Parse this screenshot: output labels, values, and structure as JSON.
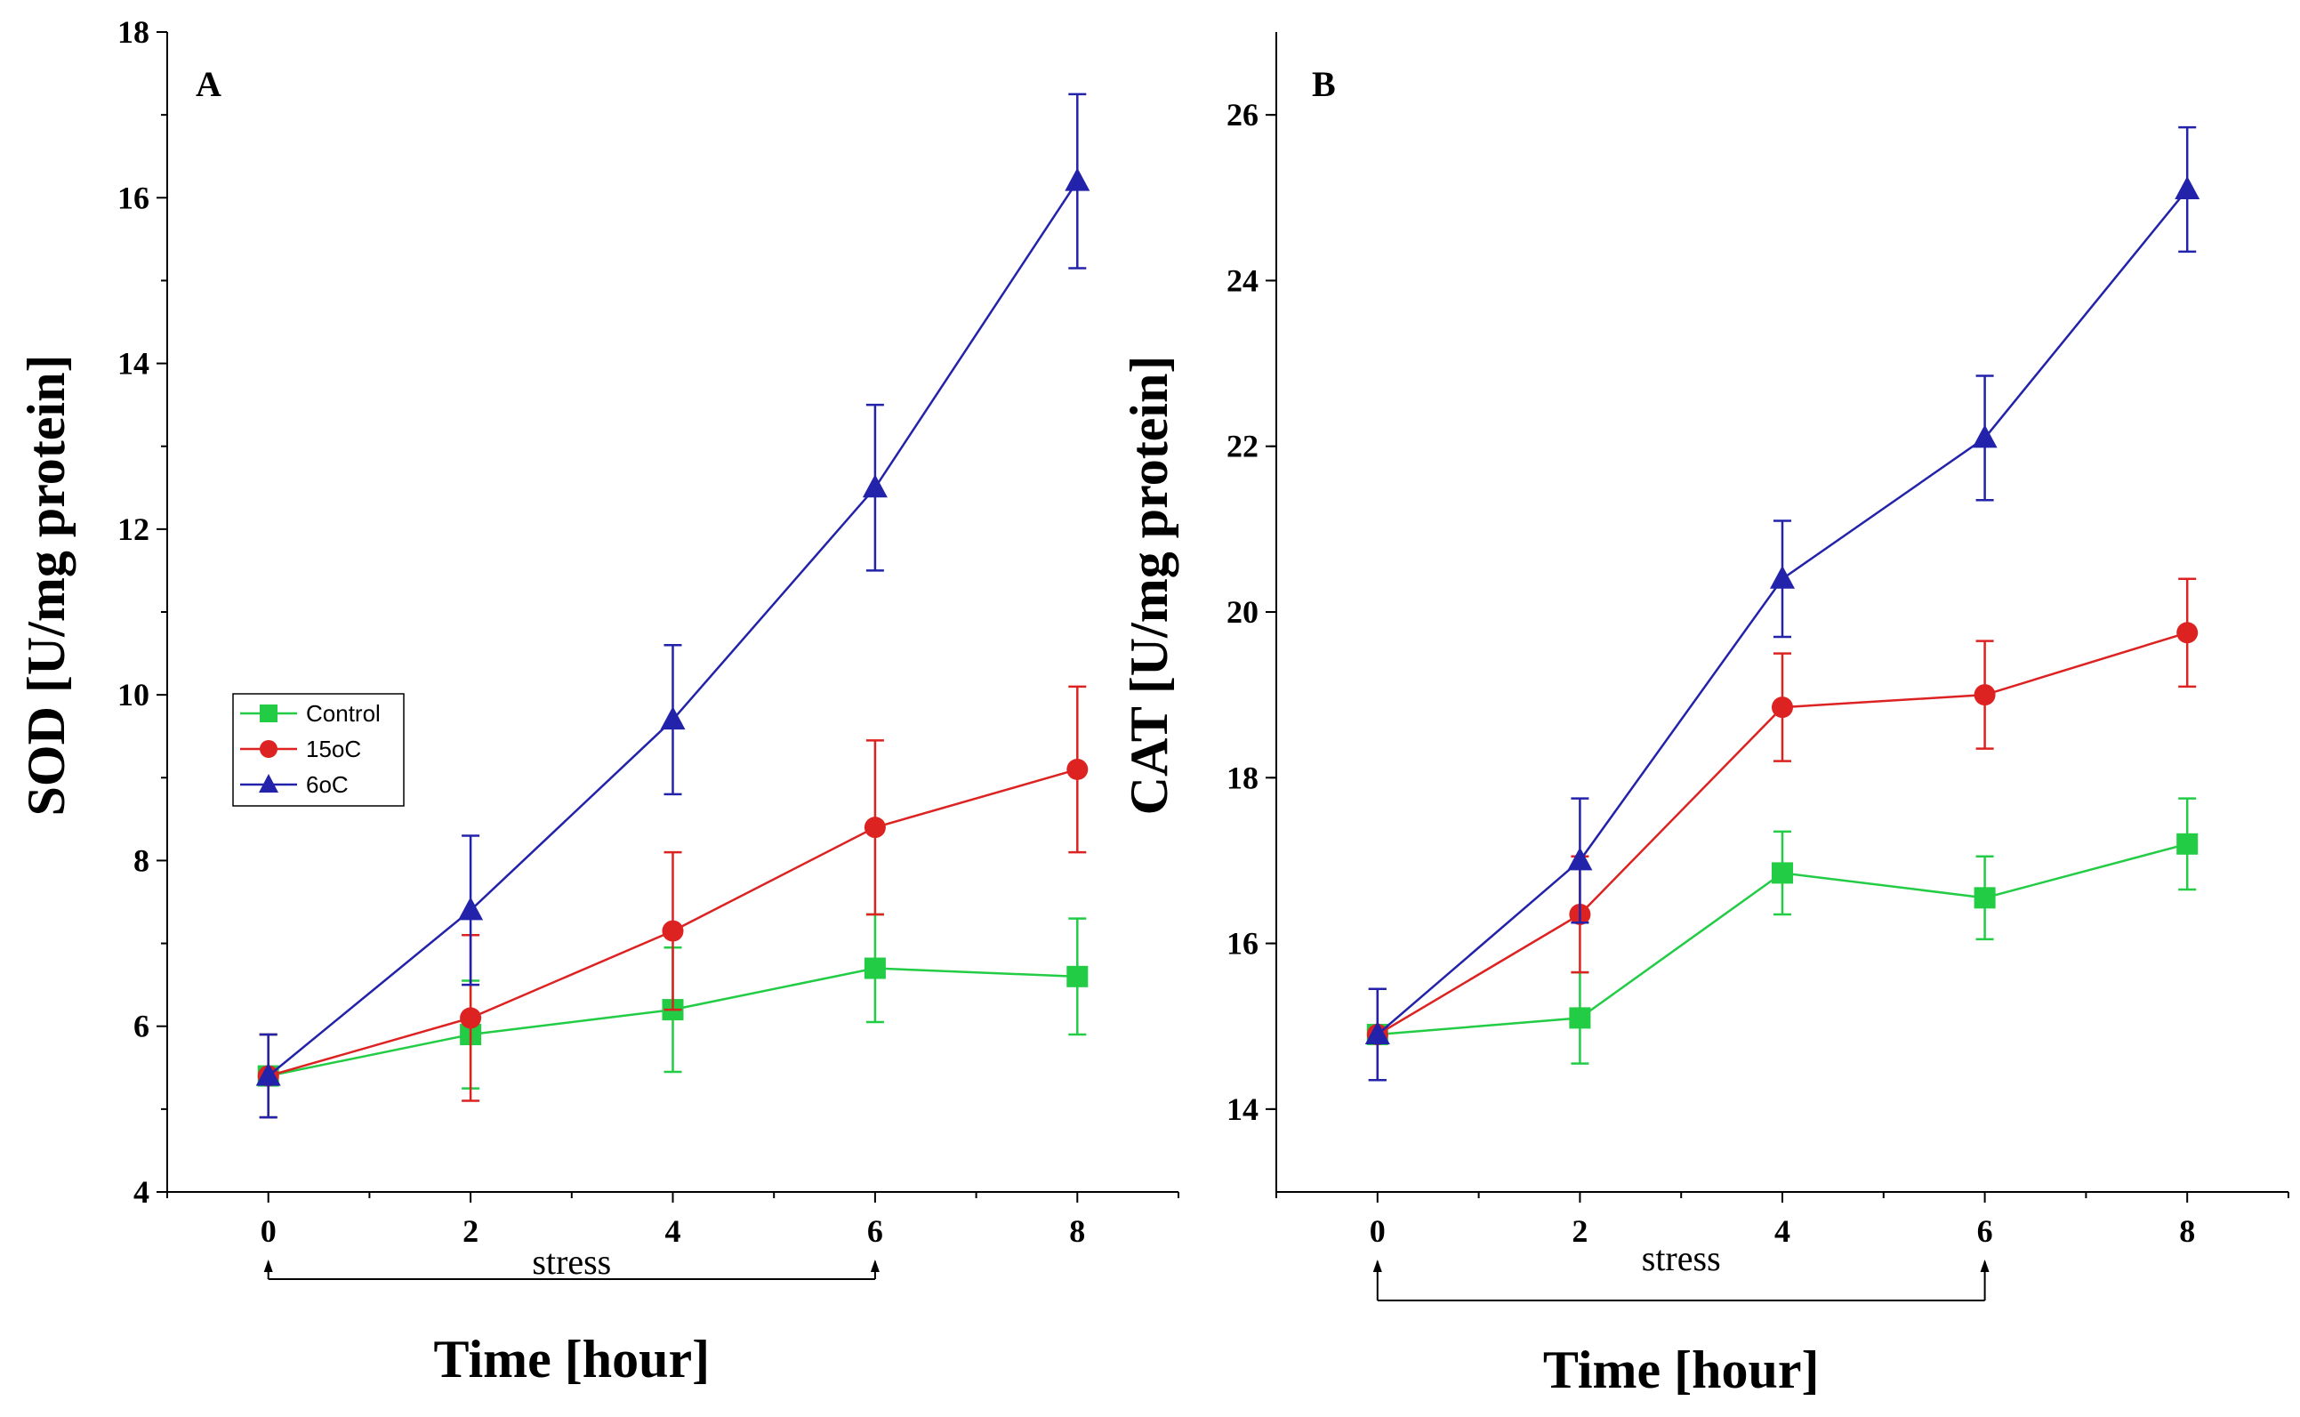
{
  "chart_data": [
    {
      "type": "line",
      "panel_label": "A",
      "xlabel": "Time [hour]",
      "ylabel": "SOD [U/mg protein]",
      "x": [
        0,
        2,
        4,
        6,
        8
      ],
      "xlim": [
        -1,
        9
      ],
      "ylim": [
        4,
        18
      ],
      "xticks": [
        0,
        2,
        4,
        6,
        8
      ],
      "yticks": [
        4,
        6,
        8,
        10,
        12,
        14,
        16,
        18
      ],
      "legend_position": "middle-left",
      "annotation": {
        "text": "stress",
        "from": 0,
        "to": 6
      },
      "series": [
        {
          "name": "Control",
          "color": "#22cc44",
          "marker": "square",
          "values": [
            5.4,
            5.9,
            6.2,
            6.7,
            6.6
          ],
          "errors": [
            0.5,
            0.65,
            0.75,
            0.65,
            0.7
          ]
        },
        {
          "name": "15oC",
          "color": "#dd2222",
          "marker": "circle",
          "values": [
            5.4,
            6.1,
            7.15,
            8.4,
            9.1
          ],
          "errors": [
            0.5,
            1.0,
            0.95,
            1.05,
            1.0
          ]
        },
        {
          "name": "6oC",
          "color": "#2222aa",
          "marker": "triangle",
          "values": [
            5.4,
            7.4,
            9.7,
            12.5,
            16.2
          ],
          "errors": [
            0.5,
            0.9,
            0.9,
            1.0,
            1.05
          ]
        }
      ]
    },
    {
      "type": "line",
      "panel_label": "B",
      "xlabel": "Time [hour]",
      "ylabel": "CAT [U/mg protein]",
      "x": [
        0,
        2,
        4,
        6,
        8
      ],
      "xlim": [
        -1,
        9
      ],
      "ylim": [
        13,
        27
      ],
      "xticks": [
        0,
        2,
        4,
        6,
        8
      ],
      "yticks": [
        14,
        16,
        18,
        20,
        22,
        24,
        26
      ],
      "annotation": {
        "text": "stress",
        "from": 0,
        "to": 6
      },
      "series": [
        {
          "name": "Control",
          "color": "#22cc44",
          "marker": "square",
          "values": [
            14.9,
            15.1,
            16.85,
            16.55,
            17.2
          ],
          "errors": [
            0.55,
            0.55,
            0.5,
            0.5,
            0.55
          ]
        },
        {
          "name": "15oC",
          "color": "#dd2222",
          "marker": "circle",
          "values": [
            14.9,
            16.35,
            18.85,
            19.0,
            19.75
          ],
          "errors": [
            0.55,
            0.7,
            0.65,
            0.65,
            0.65
          ]
        },
        {
          "name": "6oC",
          "color": "#2222aa",
          "marker": "triangle",
          "values": [
            14.9,
            17.0,
            20.4,
            22.1,
            25.1
          ],
          "errors": [
            0.55,
            0.75,
            0.7,
            0.75,
            0.75
          ]
        }
      ]
    }
  ]
}
